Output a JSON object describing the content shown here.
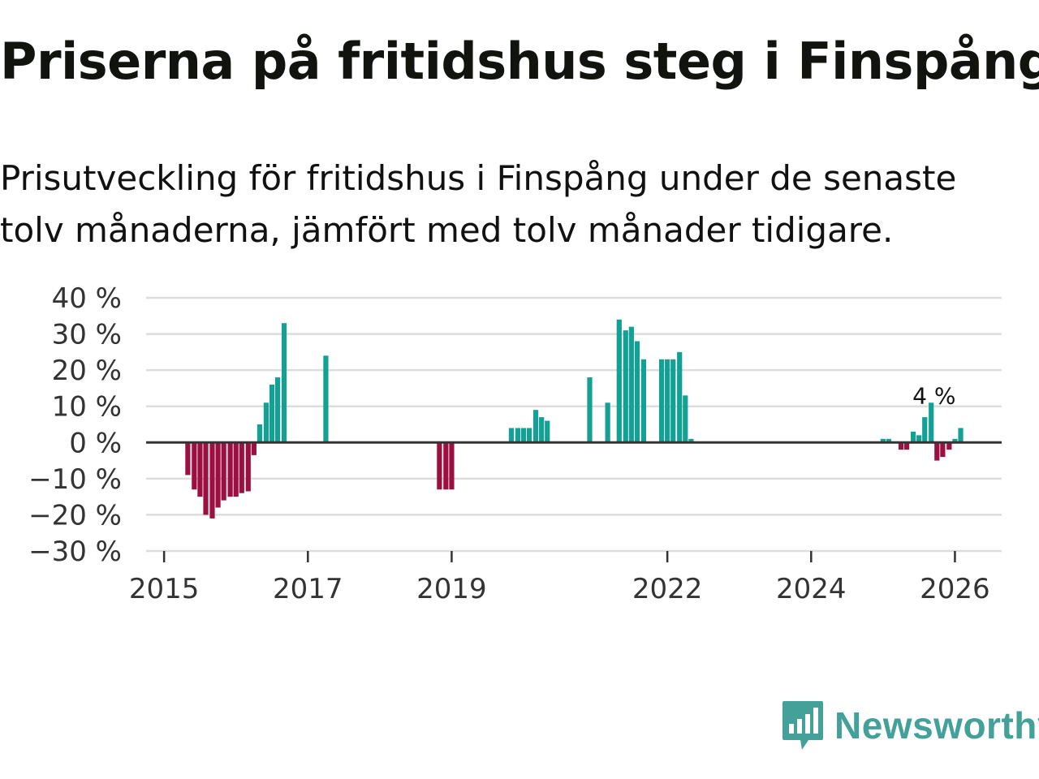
{
  "title": "Priserna på fritidshus steg i Finspång",
  "subtitle": "Prisutveckling för fritidshus i Finspång under de senaste tolv månaderna, jämfört med tolv månader tidigare.",
  "brand": {
    "name": "Newsworthy",
    "icon": "newsworthy-logo-icon",
    "color": "#44a19a"
  },
  "colors": {
    "positive": "#13a095",
    "negative": "#9b0f41",
    "grid": "#dddddd",
    "zero_line": "#333333",
    "text": "#333333"
  },
  "chart_data": {
    "type": "bar",
    "title": "Priserna på fritidshus steg i Finspång",
    "ylabel": "",
    "xlabel": "",
    "ylim": [
      -30,
      40
    ],
    "y_ticks": [
      40,
      30,
      20,
      10,
      0,
      -10,
      -20,
      -30
    ],
    "y_tick_suffix": " %",
    "x_ticks": [
      "2015",
      "2017",
      "2019",
      "2022",
      "2024",
      "2026"
    ],
    "x_tick_values": [
      2015.0,
      2017.0,
      2019.0,
      2022.0,
      2024.0,
      2026.0
    ],
    "x_range": [
      2014.75,
      2026.65
    ],
    "grid": true,
    "values": [
      {
        "x": 2015.33,
        "v": -9
      },
      {
        "x": 2015.42,
        "v": -13
      },
      {
        "x": 2015.5,
        "v": -15
      },
      {
        "x": 2015.58,
        "v": -20
      },
      {
        "x": 2015.67,
        "v": -21
      },
      {
        "x": 2015.75,
        "v": -18
      },
      {
        "x": 2015.83,
        "v": -16
      },
      {
        "x": 2015.92,
        "v": -15
      },
      {
        "x": 2016.0,
        "v": -15
      },
      {
        "x": 2016.08,
        "v": -14
      },
      {
        "x": 2016.17,
        "v": -13.5
      },
      {
        "x": 2016.25,
        "v": -3.5
      },
      {
        "x": 2016.33,
        "v": 5
      },
      {
        "x": 2016.42,
        "v": 11
      },
      {
        "x": 2016.5,
        "v": 16
      },
      {
        "x": 2016.58,
        "v": 18
      },
      {
        "x": 2016.67,
        "v": 33
      },
      {
        "x": 2017.25,
        "v": 24
      },
      {
        "x": 2018.83,
        "v": -13
      },
      {
        "x": 2018.92,
        "v": -13
      },
      {
        "x": 2019.0,
        "v": -13
      },
      {
        "x": 2019.83,
        "v": 4
      },
      {
        "x": 2019.92,
        "v": 4
      },
      {
        "x": 2020.0,
        "v": 4
      },
      {
        "x": 2020.08,
        "v": 4
      },
      {
        "x": 2020.17,
        "v": 9
      },
      {
        "x": 2020.25,
        "v": 7
      },
      {
        "x": 2020.33,
        "v": 6
      },
      {
        "x": 2020.92,
        "v": 18
      },
      {
        "x": 2021.17,
        "v": 11
      },
      {
        "x": 2021.33,
        "v": 34
      },
      {
        "x": 2021.42,
        "v": 31
      },
      {
        "x": 2021.5,
        "v": 32
      },
      {
        "x": 2021.58,
        "v": 28
      },
      {
        "x": 2021.67,
        "v": 23
      },
      {
        "x": 2021.92,
        "v": 23
      },
      {
        "x": 2022.0,
        "v": 23
      },
      {
        "x": 2022.08,
        "v": 23
      },
      {
        "x": 2022.17,
        "v": 25
      },
      {
        "x": 2022.25,
        "v": 13
      },
      {
        "x": 2022.33,
        "v": 1
      },
      {
        "x": 2025.0,
        "v": 1
      },
      {
        "x": 2025.08,
        "v": 1
      },
      {
        "x": 2025.25,
        "v": -2
      },
      {
        "x": 2025.33,
        "v": -2
      },
      {
        "x": 2025.42,
        "v": 3
      },
      {
        "x": 2025.5,
        "v": 2
      },
      {
        "x": 2025.58,
        "v": 7
      },
      {
        "x": 2025.67,
        "v": 11
      },
      {
        "x": 2025.75,
        "v": -5
      },
      {
        "x": 2025.83,
        "v": -4
      },
      {
        "x": 2025.92,
        "v": -2
      },
      {
        "x": 2026.0,
        "v": 1
      },
      {
        "x": 2026.08,
        "v": 4
      }
    ],
    "annotation": {
      "text": "4 %",
      "x": 2026.08,
      "value": 4
    }
  }
}
